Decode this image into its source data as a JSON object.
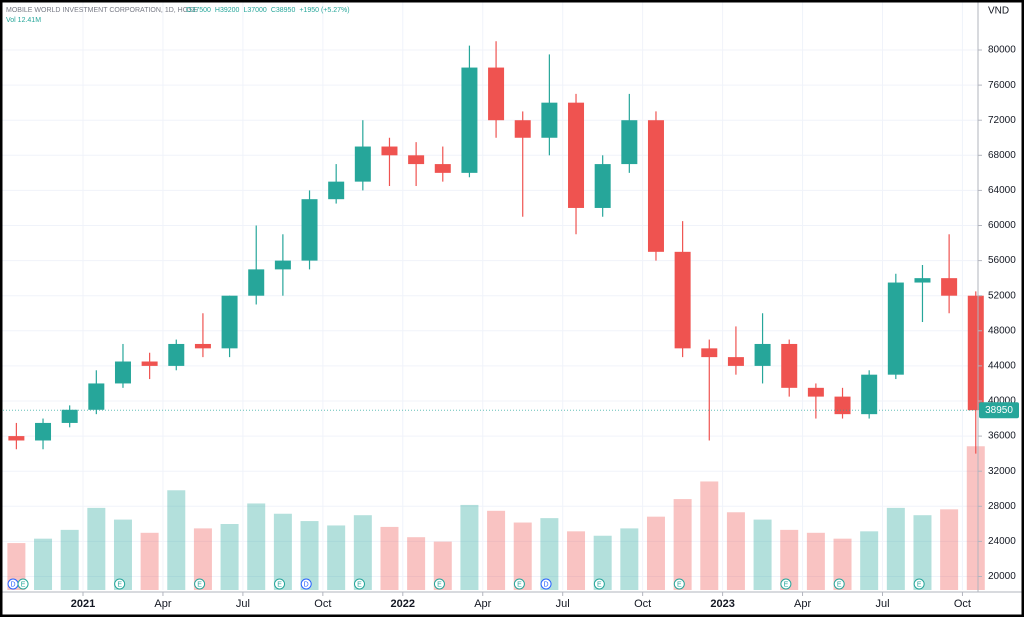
{
  "chart_data": {
    "type": "candlestick",
    "title": "MOBILE WORLD INVESTMENT CORPORATION, 1D, HOSE",
    "ohlc_labels": [
      "O37500",
      "H39200",
      "L37000",
      "C38950",
      "+1950 (+5.27%)"
    ],
    "volume_label": "Vol 12.41M",
    "currency": "VND",
    "x": [
      "2020-10",
      "2020-11",
      "2020-12",
      "2021-01",
      "2021-02",
      "2021-03",
      "2021-04",
      "2021-05",
      "2021-06",
      "2021-07",
      "2021-08",
      "2021-09",
      "2021-10",
      "2021-11",
      "2021-12",
      "2022-01",
      "2022-02",
      "2022-03",
      "2022-04",
      "2022-05",
      "2022-06",
      "2022-07",
      "2022-08",
      "2022-09",
      "2022-10",
      "2022-11",
      "2022-12",
      "2023-01",
      "2023-02",
      "2023-03",
      "2023-04",
      "2023-05",
      "2023-06",
      "2023-07",
      "2023-08",
      "2023-09",
      "2023-10"
    ],
    "open": [
      36000,
      35500,
      37500,
      39000,
      42000,
      44500,
      44000,
      46500,
      46000,
      52000,
      55000,
      56000,
      63000,
      65000,
      69000,
      68000,
      67000,
      66000,
      78000,
      72000,
      70000,
      74000,
      62000,
      67000,
      72000,
      57000,
      46000,
      45000,
      44000,
      46500,
      41500,
      40500,
      38500,
      43000,
      53500,
      54000,
      52000
    ],
    "high": [
      37500,
      38000,
      39500,
      43500,
      46500,
      45500,
      47000,
      50000,
      52000,
      60000,
      59000,
      64000,
      67000,
      72000,
      70000,
      69500,
      69000,
      80500,
      81000,
      73000,
      79500,
      75000,
      68000,
      75000,
      73000,
      60500,
      47000,
      48500,
      50000,
      47000,
      42000,
      41500,
      43500,
      54500,
      55500,
      59000,
      52500
    ],
    "low": [
      34500,
      34500,
      37000,
      38500,
      41500,
      42500,
      43500,
      45000,
      45000,
      51000,
      52000,
      55000,
      62500,
      64000,
      64500,
      64500,
      65000,
      65500,
      70000,
      61000,
      68000,
      59000,
      61000,
      66000,
      56000,
      45000,
      35500,
      43000,
      42000,
      40500,
      38000,
      38000,
      38000,
      42500,
      49000,
      50000,
      34000
    ],
    "close": [
      35500,
      37500,
      39000,
      42000,
      44500,
      44000,
      46500,
      46000,
      52000,
      55000,
      56000,
      63000,
      65000,
      69000,
      68000,
      67000,
      66000,
      78000,
      72000,
      70000,
      74000,
      62000,
      67000,
      72000,
      57000,
      46000,
      45000,
      44000,
      46500,
      41500,
      40500,
      38500,
      43000,
      53500,
      54000,
      52000,
      38950
    ],
    "volume": [
      3200000,
      3500000,
      4100000,
      5600000,
      4800000,
      3900000,
      6800000,
      4200000,
      4500000,
      5900000,
      5200000,
      4700000,
      4400000,
      5100000,
      4300000,
      3600000,
      3300000,
      5800000,
      5400000,
      4600000,
      4900000,
      4000000,
      3700000,
      4200000,
      5000000,
      6200000,
      7400000,
      5300000,
      4800000,
      4100000,
      3900000,
      3500000,
      4000000,
      5600000,
      5100000,
      5500000,
      9800000
    ],
    "up_color": "#26a69a",
    "down_color": "#ef5350",
    "ylim": [
      18460,
      85700
    ],
    "yticks": [
      20000,
      24000,
      28000,
      32000,
      36000,
      40000,
      44000,
      48000,
      52000,
      56000,
      60000,
      64000,
      68000,
      72000,
      76000,
      80000
    ],
    "volume_ylim": [
      0,
      30000000
    ],
    "xticks": [
      {
        "value": "2021-01",
        "label": "2021"
      },
      {
        "value": "2021-04",
        "label": "Apr"
      },
      {
        "value": "2021-07",
        "label": "Jul"
      },
      {
        "value": "2021-10",
        "label": "Oct"
      },
      {
        "value": "2022-01",
        "label": "2022"
      },
      {
        "value": "2022-04",
        "label": "Apr"
      },
      {
        "value": "2022-07",
        "label": "Jul"
      },
      {
        "value": "2022-10",
        "label": "Oct"
      },
      {
        "value": "2023-01",
        "label": "2023"
      },
      {
        "value": "2023-04",
        "label": "Apr"
      },
      {
        "value": "2023-07",
        "label": "Jul"
      },
      {
        "value": "2023-10",
        "label": "Oct"
      }
    ],
    "grid": true,
    "events": [
      {
        "date": "2020-10",
        "label": "D"
      },
      {
        "date": "2020-10",
        "label": "E"
      },
      {
        "date": "2021-02",
        "label": "E"
      },
      {
        "date": "2021-05",
        "label": "E"
      },
      {
        "date": "2021-08",
        "label": "E"
      },
      {
        "date": "2021-09",
        "label": "D"
      },
      {
        "date": "2021-11",
        "label": "E"
      },
      {
        "date": "2022-02",
        "label": "E"
      },
      {
        "date": "2022-05",
        "label": "E"
      },
      {
        "date": "2022-06",
        "label": "D"
      },
      {
        "date": "2022-08",
        "label": "E"
      },
      {
        "date": "2022-11",
        "label": "E"
      },
      {
        "date": "2023-03",
        "label": "E"
      },
      {
        "date": "2023-05",
        "label": "E"
      },
      {
        "date": "2023-08",
        "label": "E"
      }
    ]
  }
}
